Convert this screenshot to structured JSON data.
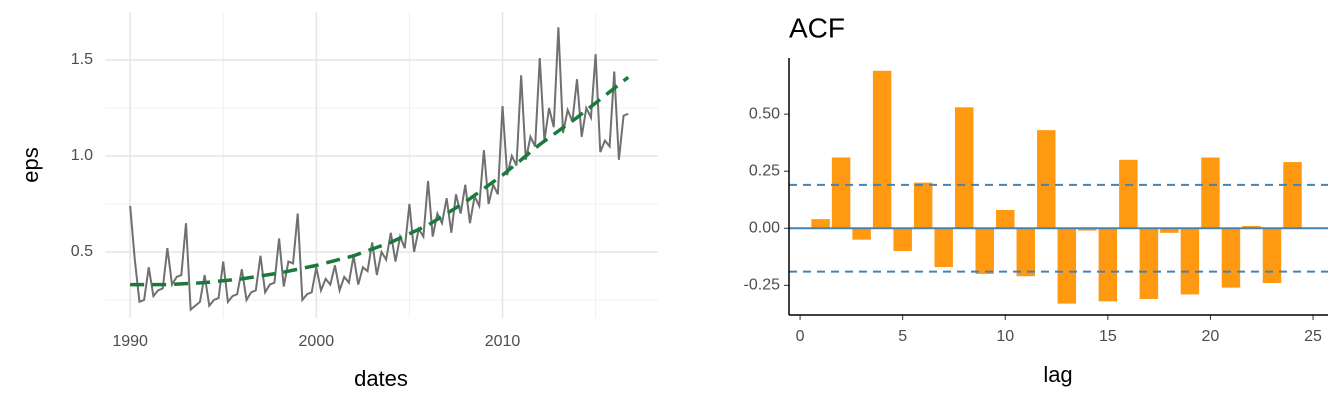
{
  "chart_data": [
    {
      "type": "line",
      "xlabel": "dates",
      "ylabel": "eps",
      "x": [
        1990,
        1990.25,
        1990.5,
        1990.75,
        1991,
        1991.25,
        1991.5,
        1991.75,
        1992,
        1992.25,
        1992.5,
        1992.75,
        1993,
        1993.25,
        1993.5,
        1993.75,
        1994,
        1994.25,
        1994.5,
        1994.75,
        1995,
        1995.25,
        1995.5,
        1995.75,
        1996,
        1996.25,
        1996.5,
        1996.75,
        1997,
        1997.25,
        1997.5,
        1997.75,
        1998,
        1998.25,
        1998.5,
        1998.75,
        1999,
        1999.25,
        1999.5,
        1999.75,
        2000,
        2000.25,
        2000.5,
        2000.75,
        2001,
        2001.25,
        2001.5,
        2001.75,
        2002,
        2002.25,
        2002.5,
        2002.75,
        2003,
        2003.25,
        2003.5,
        2003.75,
        2004,
        2004.25,
        2004.5,
        2004.75,
        2005,
        2005.25,
        2005.5,
        2005.75,
        2006,
        2006.25,
        2006.5,
        2006.75,
        2007,
        2007.25,
        2007.5,
        2007.75,
        2008,
        2008.25,
        2008.5,
        2008.75,
        2009,
        2009.25,
        2009.5,
        2009.75,
        2010,
        2010.25,
        2010.5,
        2010.75,
        2011,
        2011.25,
        2011.5,
        2011.75,
        2012,
        2012.25,
        2012.5,
        2012.75,
        2013,
        2013.25,
        2013.5,
        2013.75,
        2014,
        2014.25,
        2014.5,
        2014.75,
        2015,
        2015.25,
        2015.5,
        2015.75,
        2016,
        2016.25,
        2016.5,
        2016.75
      ],
      "series": [
        {
          "color": "#707070",
          "values": [
            0.74,
            0.46,
            0.24,
            0.25,
            0.42,
            0.27,
            0.3,
            0.31,
            0.52,
            0.33,
            0.37,
            0.38,
            0.65,
            0.2,
            0.22,
            0.24,
            0.38,
            0.22,
            0.25,
            0.26,
            0.45,
            0.24,
            0.27,
            0.28,
            0.41,
            0.25,
            0.29,
            0.3,
            0.48,
            0.29,
            0.33,
            0.34,
            0.57,
            0.32,
            0.45,
            0.44,
            0.7,
            0.25,
            0.28,
            0.29,
            0.42,
            0.3,
            0.36,
            0.33,
            0.43,
            0.3,
            0.37,
            0.34,
            0.48,
            0.33,
            0.42,
            0.4,
            0.55,
            0.38,
            0.5,
            0.46,
            0.6,
            0.45,
            0.58,
            0.52,
            0.75,
            0.5,
            0.62,
            0.58,
            0.87,
            0.58,
            0.7,
            0.65,
            0.78,
            0.6,
            0.8,
            0.7,
            0.85,
            0.65,
            0.79,
            0.74,
            1.03,
            0.75,
            0.85,
            0.8,
            1.26,
            0.9,
            1.0,
            0.95,
            1.42,
            0.98,
            1.1,
            1.05,
            1.51,
            1.08,
            1.25,
            1.15,
            1.67,
            1.12,
            1.24,
            1.18,
            1.4,
            1.1,
            1.25,
            1.2,
            1.53,
            1.02,
            1.08,
            1.05,
            1.44,
            0.98,
            1.21,
            1.22
          ]
        },
        {
          "color": "#1a7a3a",
          "dashed": true,
          "x": [
            1990,
            1992,
            1994,
            1996,
            1998,
            2000,
            2002,
            2004,
            2006,
            2008,
            2010,
            2012,
            2014,
            2016.75
          ],
          "values": [
            0.33,
            0.33,
            0.34,
            0.36,
            0.39,
            0.43,
            0.48,
            0.55,
            0.64,
            0.76,
            0.9,
            1.06,
            1.2,
            1.41
          ]
        }
      ],
      "xlim": [
        1988.65,
        2018.35
      ],
      "xticks": [
        1990,
        2000,
        2010
      ],
      "ylim": [
        0.156,
        1.75
      ],
      "yticks": [
        0.5,
        {
          "value": 1,
          "label": "1.0"
        },
        1.5
      ],
      "grid": true
    },
    {
      "type": "bar",
      "title": "ACF",
      "xlabel": "lag",
      "color": "#ff9912",
      "x": [
        1,
        2,
        3,
        4,
        5,
        6,
        7,
        8,
        9,
        10,
        11,
        12,
        13,
        14,
        15,
        16,
        17,
        18,
        19,
        20,
        21,
        22,
        23,
        24
      ],
      "values": [
        0.04,
        0.31,
        -0.05,
        0.69,
        -0.1,
        0.2,
        -0.17,
        0.53,
        -0.2,
        0.08,
        -0.21,
        0.43,
        -0.33,
        -0.01,
        -0.32,
        0.3,
        -0.31,
        -0.02,
        -0.29,
        0.31,
        -0.26,
        0.01,
        -0.24,
        0.29
      ],
      "hlines": [
        0.19,
        -0.19
      ],
      "hline_color": "#4682b4",
      "xlim": [
        -0.54,
        25.73
      ],
      "xticks": [
        0,
        5,
        10,
        15,
        20,
        25
      ],
      "ylim": [
        -0.38,
        0.746
      ],
      "yticks": [
        -0.25,
        {
          "value": 0,
          "label": "0.00"
        },
        0.25,
        {
          "value": 0.5,
          "label": "0.50"
        }
      ],
      "grid": false
    }
  ]
}
